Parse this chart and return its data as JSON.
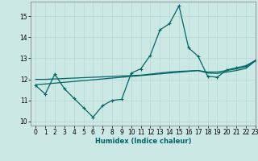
{
  "xlabel": "Humidex (Indice chaleur)",
  "xlim": [
    -0.5,
    23
  ],
  "ylim": [
    9.8,
    15.7
  ],
  "yticks": [
    10,
    11,
    12,
    13,
    14,
    15
  ],
  "xticks": [
    0,
    1,
    2,
    3,
    4,
    5,
    6,
    7,
    8,
    9,
    10,
    11,
    12,
    13,
    14,
    15,
    16,
    17,
    18,
    19,
    20,
    21,
    22,
    23
  ],
  "bg_color": "#cce8e4",
  "grid_color": "#b8d8d2",
  "line_color": "#006666",
  "line1_x": [
    0,
    1,
    2,
    3,
    4,
    5,
    6,
    7,
    8,
    9,
    10,
    11,
    12,
    13,
    14,
    15,
    16,
    17,
    18,
    19,
    20,
    21,
    22,
    23
  ],
  "line1_y": [
    11.7,
    11.3,
    12.25,
    11.55,
    11.1,
    10.65,
    10.2,
    10.75,
    11.0,
    11.05,
    12.3,
    12.5,
    13.15,
    14.35,
    14.65,
    15.5,
    13.5,
    13.1,
    12.15,
    12.1,
    12.45,
    12.55,
    12.65,
    12.9
  ],
  "line2_x": [
    0,
    1,
    2,
    3,
    4,
    5,
    6,
    7,
    8,
    9,
    10,
    11,
    12,
    13,
    14,
    15,
    16,
    17,
    18,
    19,
    20,
    21,
    22,
    23
  ],
  "line2_y": [
    12.0,
    12.0,
    12.02,
    12.04,
    12.06,
    12.08,
    12.1,
    12.12,
    12.14,
    12.16,
    12.18,
    12.2,
    12.25,
    12.3,
    12.35,
    12.38,
    12.4,
    12.42,
    12.35,
    12.35,
    12.42,
    12.5,
    12.6,
    12.9
  ],
  "line3_x": [
    0,
    1,
    2,
    3,
    4,
    5,
    6,
    7,
    8,
    9,
    10,
    11,
    12,
    13,
    14,
    15,
    16,
    17,
    18,
    19,
    20,
    21,
    22,
    23
  ],
  "line3_y": [
    11.75,
    11.78,
    11.82,
    11.86,
    11.9,
    11.94,
    11.98,
    12.02,
    12.06,
    12.1,
    12.14,
    12.18,
    12.22,
    12.26,
    12.3,
    12.34,
    12.38,
    12.42,
    12.3,
    12.28,
    12.35,
    12.42,
    12.52,
    12.88
  ]
}
